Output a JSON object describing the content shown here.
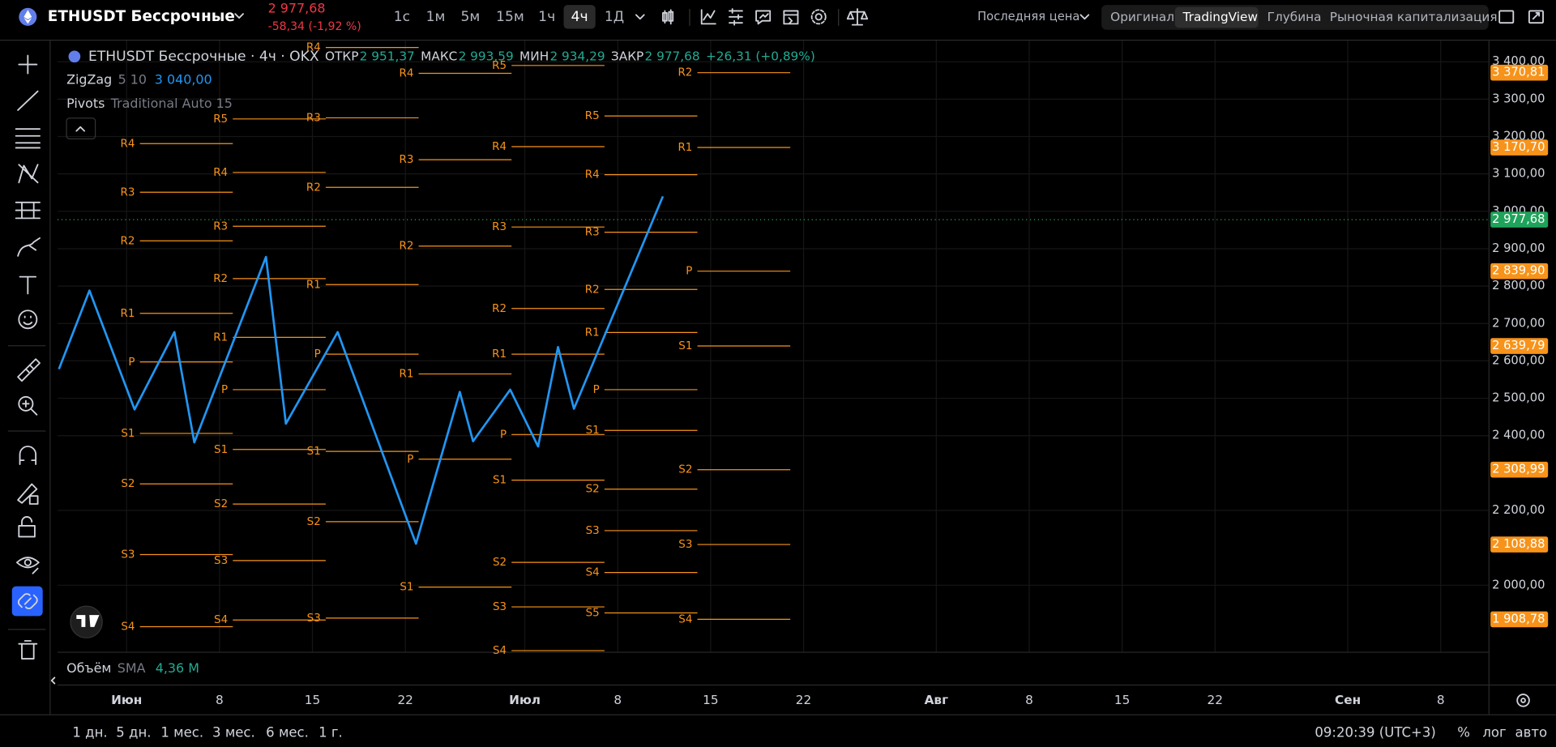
{
  "header": {
    "symbol": "ETHUSDT Бессрочные",
    "price": "2 977,68",
    "change": "-58,34 (-1,92 %)",
    "intervals": [
      "1с",
      "1м",
      "5м",
      "15м",
      "1ч",
      "4ч",
      "1Д"
    ],
    "price_source": "Последняя цена",
    "views": [
      "Оригинал",
      "TradingView",
      "Глубина",
      "Рыночная капитализация"
    ]
  },
  "legend": {
    "title": "ETHUSDT Бессрочные · 4ч · OKX",
    "ohlc": [
      {
        "label": "ОТКР",
        "value": "2 951,37"
      },
      {
        "label": "МАКС",
        "value": "2 993,59"
      },
      {
        "label": "МИН",
        "value": "2 934,29"
      },
      {
        "label": "ЗАКР",
        "value": "2 977,68"
      }
    ],
    "change": "+26,31 (+0,89%)",
    "indicators": [
      {
        "name": "ZigZag",
        "params": "5 10",
        "value": "3 040,00"
      },
      {
        "name": "Pivots",
        "params": "Traditional Auto 15"
      }
    ]
  },
  "volume": {
    "name": "Объём",
    "ma": "SMA",
    "value": "4,36 M"
  },
  "chart_data": {
    "type": "line",
    "xlim": [
      -5.2,
      102.6
    ],
    "ylim": [
      1822,
      3459
    ],
    "xticks": [
      {
        "value": 0,
        "label": "Июн"
      },
      {
        "value": 7,
        "label": "8"
      },
      {
        "value": 14,
        "label": "15"
      },
      {
        "value": 21,
        "label": "22"
      },
      {
        "value": 30,
        "label": "Июл"
      },
      {
        "value": 37,
        "label": "8"
      },
      {
        "value": 44,
        "label": "15"
      },
      {
        "value": 51,
        "label": "22"
      },
      {
        "value": 61,
        "label": "Авг"
      },
      {
        "value": 68,
        "label": "8"
      },
      {
        "value": 75,
        "label": "15"
      },
      {
        "value": 82,
        "label": "22"
      },
      {
        "value": 92,
        "label": "Сен"
      },
      {
        "value": 99,
        "label": "8"
      }
    ],
    "yticks": [
      {
        "value": 3400,
        "label": "3 400,00"
      },
      {
        "value": 3300,
        "label": "3 300,00"
      },
      {
        "value": 3200,
        "label": "3 200,00"
      },
      {
        "value": 3100,
        "label": "3 100,00"
      },
      {
        "value": 3000,
        "label": "3 000,00"
      },
      {
        "value": 2900,
        "label": "2 900,00"
      },
      {
        "value": 2800,
        "label": "2 800,00"
      },
      {
        "value": 2700,
        "label": "2 700,00"
      },
      {
        "value": 2600,
        "label": "2 600,00"
      },
      {
        "value": 2500,
        "label": "2 500,00"
      },
      {
        "value": 2400,
        "label": "2 400,00"
      },
      {
        "value": 2200,
        "label": "2 200,00"
      },
      {
        "value": 2000,
        "label": "2 000,00"
      }
    ],
    "grid": true,
    "x": [
      -5.1,
      -2.8,
      0.6,
      3.6,
      5.1,
      10.5,
      12.0,
      15.9,
      21.8,
      25.1,
      26.1,
      28.9,
      31.0,
      32.5,
      33.7,
      40.4
    ],
    "series": [
      {
        "name": "ZigZag",
        "color": "#2196f3",
        "values": [
          2578,
          2788,
          2470,
          2677,
          2382,
          2878,
          2432,
          2677,
          2111,
          2517,
          2385,
          2523,
          2371,
          2637,
          2472,
          3040
        ]
      }
    ],
    "last_price": {
      "value": 2977.68,
      "label": "2 977,68"
    },
    "pivots": {
      "color": "#f7931a",
      "periods": [
        {
          "start": 1,
          "end": 8,
          "levels": [
            {
              "name": "R4",
              "value": 3181
            },
            {
              "name": "R3",
              "value": 3051
            },
            {
              "name": "R2",
              "value": 2921
            },
            {
              "name": "R1",
              "value": 2727
            },
            {
              "name": "P",
              "value": 2597
            },
            {
              "name": "S1",
              "value": 2406
            },
            {
              "name": "S2",
              "value": 2271
            },
            {
              "name": "S3",
              "value": 2082
            },
            {
              "name": "S4",
              "value": 1889
            }
          ]
        },
        {
          "start": 8,
          "end": 15,
          "levels": [
            {
              "name": "R5",
              "value": 3247
            },
            {
              "name": "R4",
              "value": 3104
            },
            {
              "name": "R3",
              "value": 2960
            },
            {
              "name": "R2",
              "value": 2820
            },
            {
              "name": "R1",
              "value": 2663
            },
            {
              "name": "P",
              "value": 2523
            },
            {
              "name": "S1",
              "value": 2363
            },
            {
              "name": "S2",
              "value": 2217
            },
            {
              "name": "S3",
              "value": 2066
            },
            {
              "name": "S4",
              "value": 1907
            }
          ]
        },
        {
          "start": 15,
          "end": 22,
          "levels": [
            {
              "name": "R4",
              "value": 3438
            },
            {
              "name": "R3",
              "value": 3250
            },
            {
              "name": "R2",
              "value": 3064
            },
            {
              "name": "R1",
              "value": 2804
            },
            {
              "name": "P",
              "value": 2618
            },
            {
              "name": "S1",
              "value": 2358
            },
            {
              "name": "S2",
              "value": 2170
            },
            {
              "name": "S3",
              "value": 1912
            }
          ]
        },
        {
          "start": 22,
          "end": 29,
          "levels": [
            {
              "name": "R4",
              "value": 3369
            },
            {
              "name": "R3",
              "value": 3138
            },
            {
              "name": "R2",
              "value": 2907
            },
            {
              "name": "R1",
              "value": 2565
            },
            {
              "name": "P",
              "value": 2337
            },
            {
              "name": "S1",
              "value": 1995
            }
          ]
        },
        {
          "start": 29,
          "end": 36,
          "levels": [
            {
              "name": "R5",
              "value": 3390
            },
            {
              "name": "R4",
              "value": 3173
            },
            {
              "name": "R3",
              "value": 2958
            },
            {
              "name": "R2",
              "value": 2740
            },
            {
              "name": "R1",
              "value": 2618
            },
            {
              "name": "P",
              "value": 2403
            },
            {
              "name": "S1",
              "value": 2281
            },
            {
              "name": "S2",
              "value": 2061
            },
            {
              "name": "S3",
              "value": 1942
            },
            {
              "name": "S4",
              "value": 1825
            }
          ]
        },
        {
          "start": 36,
          "end": 43,
          "levels": [
            {
              "name": "R5",
              "value": 3255
            },
            {
              "name": "R4",
              "value": 3098
            },
            {
              "name": "R3",
              "value": 2944
            },
            {
              "name": "R2",
              "value": 2791
            },
            {
              "name": "R1",
              "value": 2676
            },
            {
              "name": "P",
              "value": 2523
            },
            {
              "name": "S1",
              "value": 2414
            },
            {
              "name": "S2",
              "value": 2257
            },
            {
              "name": "S3",
              "value": 2146
            },
            {
              "name": "S4",
              "value": 2034
            },
            {
              "name": "S5",
              "value": 1926
            }
          ]
        },
        {
          "start": 43,
          "end": 50,
          "levels": [
            {
              "name": "R2",
              "value": 3370.81,
              "label": "3 370,81"
            },
            {
              "name": "R1",
              "value": 3170.7,
              "label": "3 170,70"
            },
            {
              "name": "P",
              "value": 2839.9,
              "label": "2 839,90"
            },
            {
              "name": "S1",
              "value": 2639.79,
              "label": "2 639,79"
            },
            {
              "name": "S2",
              "value": 2308.99,
              "label": "2 308,99"
            },
            {
              "name": "S3",
              "value": 2108.88,
              "label": "2 108,88"
            },
            {
              "name": "S4",
              "value": 1908.78,
              "label": "1 908,78"
            }
          ]
        }
      ]
    }
  },
  "footer": {
    "ranges": [
      "1 дн.",
      "5 дн.",
      "1 мес.",
      "3 мес.",
      "6 мес.",
      "1 г."
    ],
    "time": "09:20:39 (UTC+3)",
    "toggles": [
      "%",
      "лог",
      "авто"
    ]
  }
}
